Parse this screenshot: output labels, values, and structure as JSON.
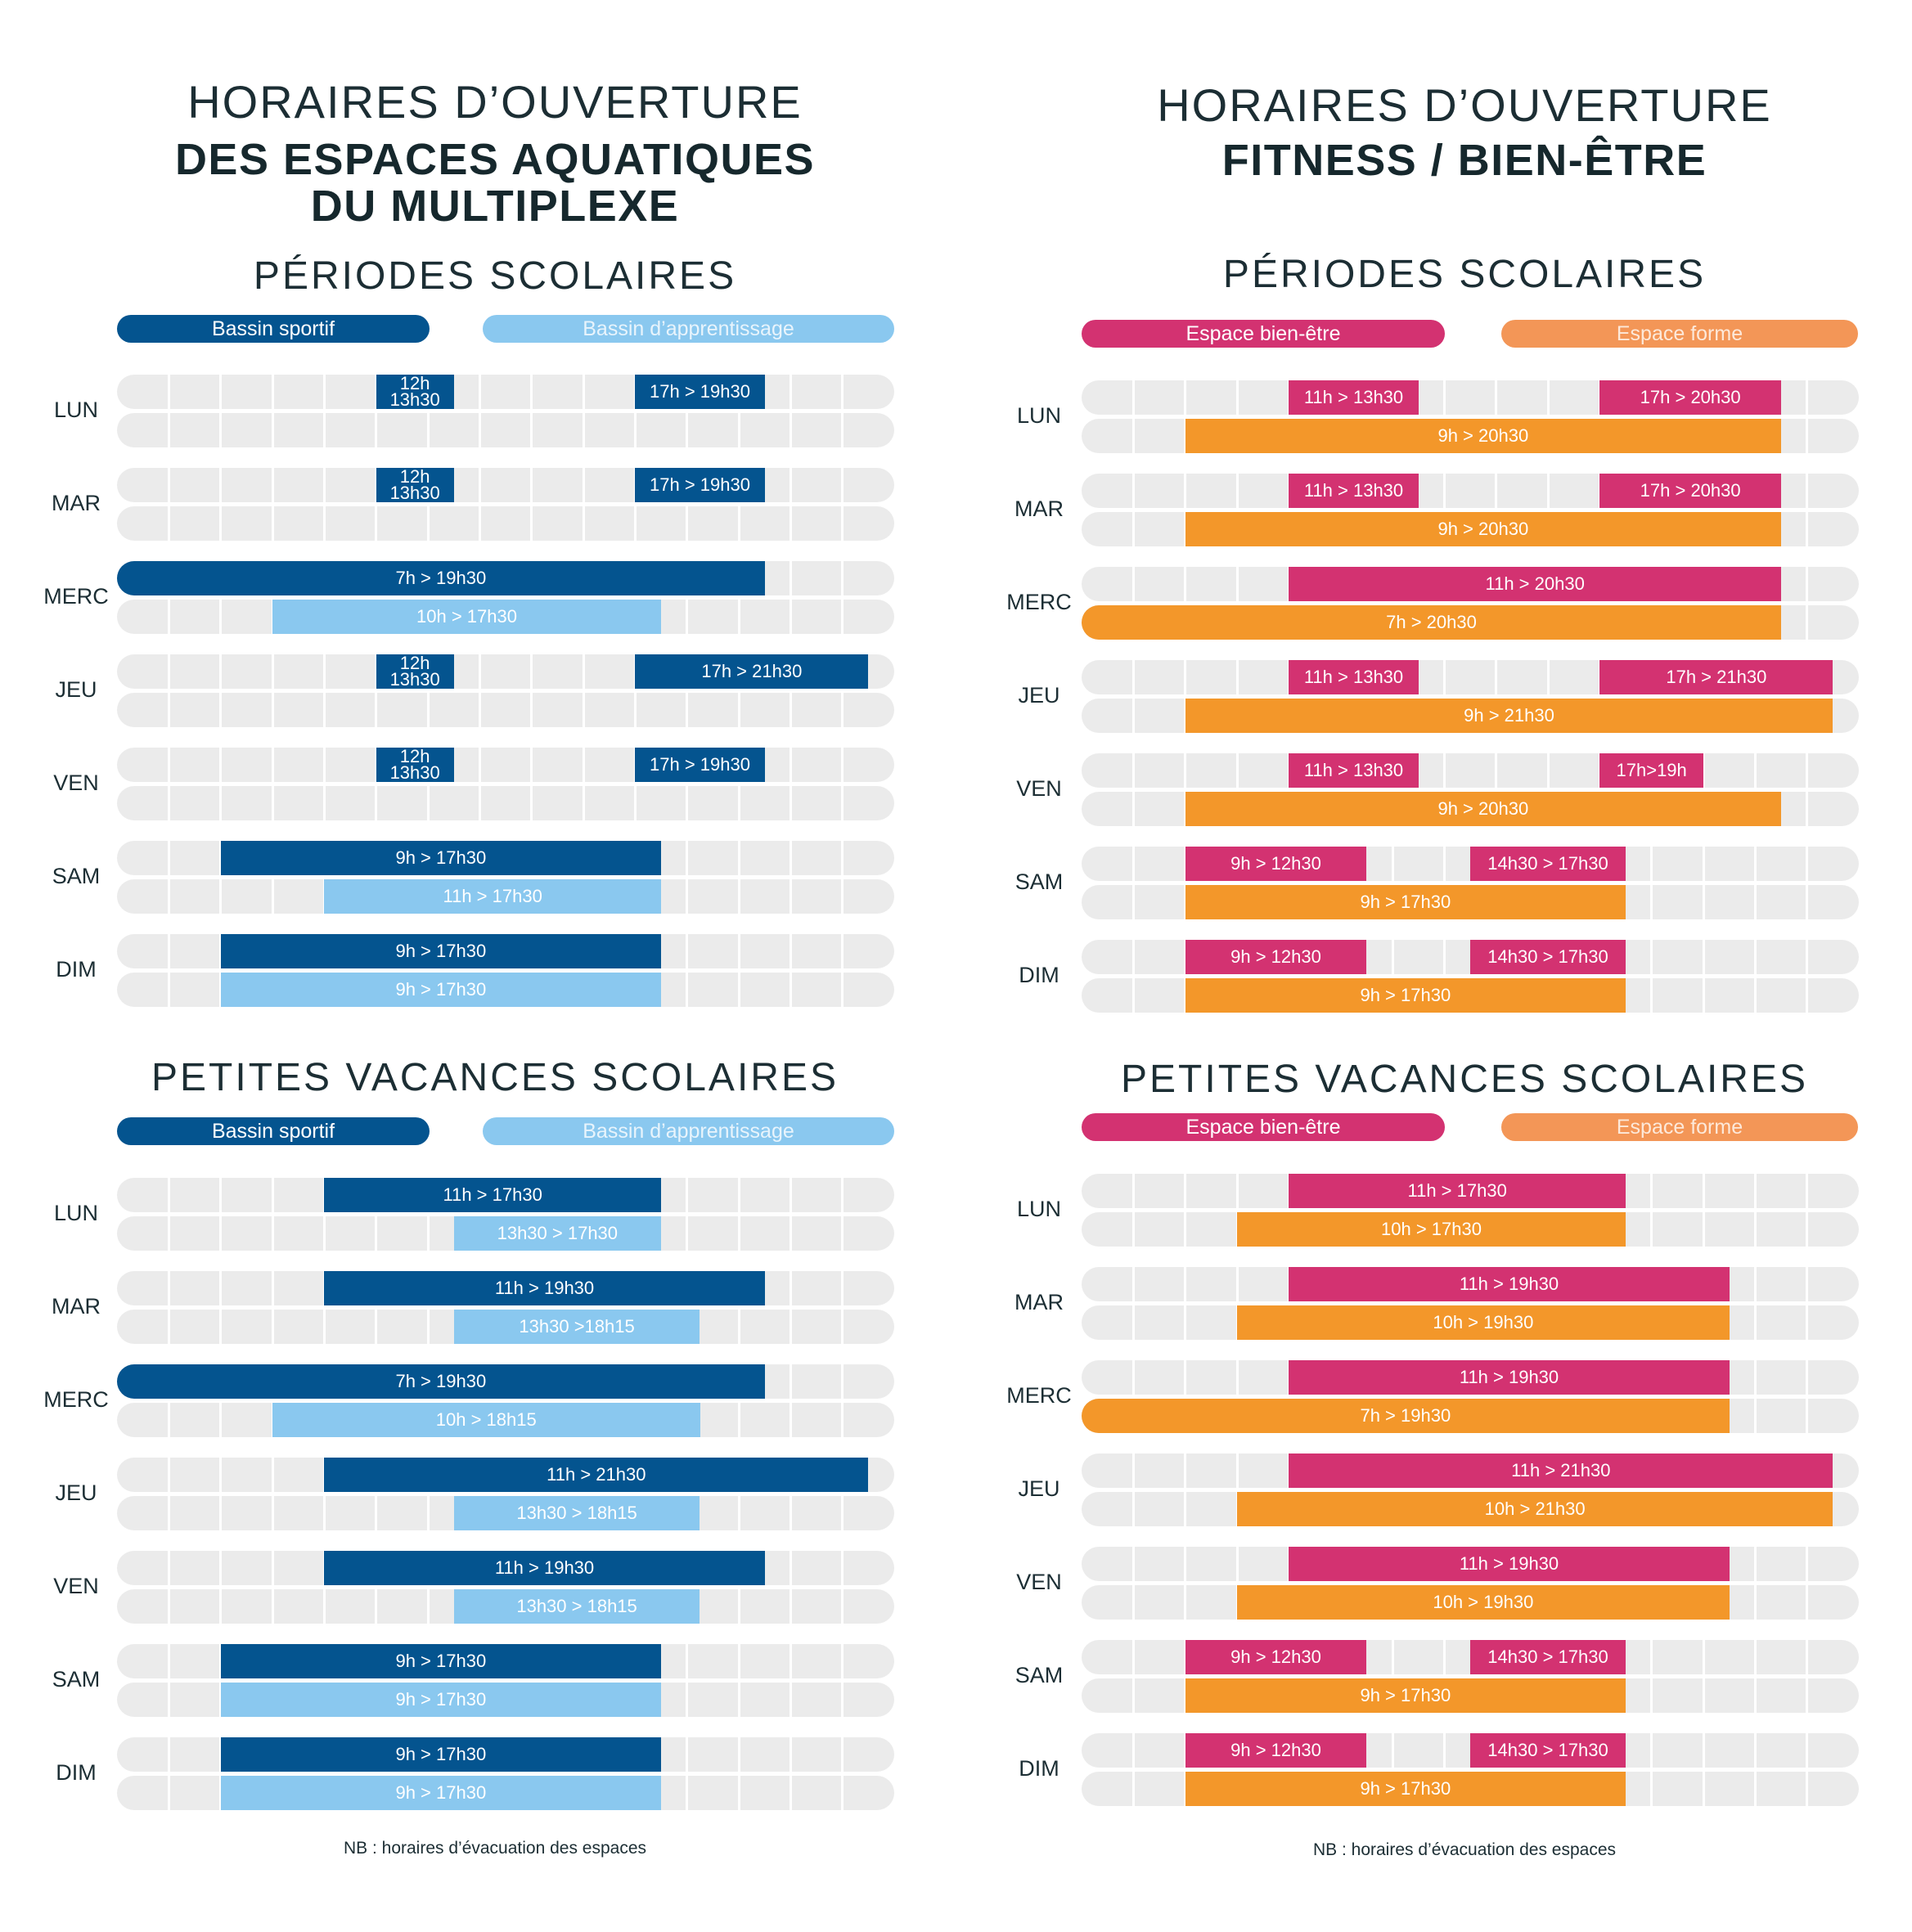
{
  "colors": {
    "bassin_sportif": "#04548f",
    "bassin_apprentissage": "#8ac8ef",
    "bien_etre": "#d33271",
    "forme_legend": "#f39657",
    "forme_bar": "#f3972a",
    "track": "#ebebeb"
  },
  "left": {
    "title_light": "HORAIRES D’OUVERTURE",
    "title_bold_1": "DES ESPACES AQUATIQUES",
    "title_bold_2": "DU MULTIPLEXE",
    "note": "NB : horaires d’évacuation des espaces"
  },
  "right": {
    "title_light": "HORAIRES D’OUVERTURE",
    "title_bold_1": "FITNESS  / BIEN-ÊTRE",
    "note": "NB : horaires d’évacuation des espaces"
  },
  "chart_data": [
    {
      "type": "bar",
      "orientation": "horizontal",
      "subtype": "timeline",
      "title": "PÉRIODES SCOLAIRES",
      "axis_hours": [
        7,
        22
      ],
      "legend": [
        "Bassin sportif",
        "Bassin d’apprentissage"
      ],
      "days": [
        {
          "day": "LUN",
          "rows": [
            [
              {
                "start": 12,
                "end": 13.5,
                "label": "12h\n13h30",
                "series": 0
              },
              {
                "start": 17,
                "end": 19.5,
                "label": "17h > 19h30",
                "series": 0
              }
            ],
            []
          ]
        },
        {
          "day": "MAR",
          "rows": [
            [
              {
                "start": 12,
                "end": 13.5,
                "label": "12h\n13h30",
                "series": 0
              },
              {
                "start": 17,
                "end": 19.5,
                "label": "17h > 19h30",
                "series": 0
              }
            ],
            []
          ]
        },
        {
          "day": "MERC",
          "rows": [
            [
              {
                "start": 7,
                "end": 19.5,
                "label": "7h > 19h30",
                "series": 0
              }
            ],
            [
              {
                "start": 10,
                "end": 17.5,
                "label": "10h > 17h30",
                "series": 1
              }
            ]
          ]
        },
        {
          "day": "JEU",
          "rows": [
            [
              {
                "start": 12,
                "end": 13.5,
                "label": "12h\n13h30",
                "series": 0
              },
              {
                "start": 17,
                "end": 21.5,
                "label": "17h > 21h30",
                "series": 0
              }
            ],
            []
          ]
        },
        {
          "day": "VEN",
          "rows": [
            [
              {
                "start": 12,
                "end": 13.5,
                "label": "12h\n13h30",
                "series": 0
              },
              {
                "start": 17,
                "end": 19.5,
                "label": "17h > 19h30",
                "series": 0
              }
            ],
            []
          ]
        },
        {
          "day": "SAM",
          "rows": [
            [
              {
                "start": 9,
                "end": 17.5,
                "label": "9h > 17h30",
                "series": 0
              }
            ],
            [
              {
                "start": 11,
                "end": 17.5,
                "label": "11h > 17h30",
                "series": 1
              }
            ]
          ]
        },
        {
          "day": "DIM",
          "rows": [
            [
              {
                "start": 9,
                "end": 17.5,
                "label": "9h > 17h30",
                "series": 0
              }
            ],
            [
              {
                "start": 9,
                "end": 17.5,
                "label": "9h > 17h30",
                "series": 1
              }
            ]
          ]
        }
      ]
    },
    {
      "type": "bar",
      "orientation": "horizontal",
      "subtype": "timeline",
      "title": "PETITES VACANCES SCOLAIRES",
      "axis_hours": [
        7,
        22
      ],
      "legend": [
        "Bassin sportif",
        "Bassin d’apprentissage"
      ],
      "days": [
        {
          "day": "LUN",
          "rows": [
            [
              {
                "start": 11,
                "end": 17.5,
                "label": "11h > 17h30",
                "series": 0
              }
            ],
            [
              {
                "start": 13.5,
                "end": 17.5,
                "label": "13h30 > 17h30",
                "series": 1
              }
            ]
          ]
        },
        {
          "day": "MAR",
          "rows": [
            [
              {
                "start": 11,
                "end": 19.5,
                "label": "11h > 19h30",
                "series": 0
              }
            ],
            [
              {
                "start": 13.5,
                "end": 18.25,
                "label": "13h30 >18h15",
                "series": 1
              }
            ]
          ]
        },
        {
          "day": "MERC",
          "rows": [
            [
              {
                "start": 7,
                "end": 19.5,
                "label": "7h > 19h30",
                "series": 0
              }
            ],
            [
              {
                "start": 10,
                "end": 18.25,
                "label": "10h > 18h15",
                "series": 1
              }
            ]
          ]
        },
        {
          "day": "JEU",
          "rows": [
            [
              {
                "start": 11,
                "end": 21.5,
                "label": "11h > 21h30",
                "series": 0
              }
            ],
            [
              {
                "start": 13.5,
                "end": 18.25,
                "label": "13h30 > 18h15",
                "series": 1
              }
            ]
          ]
        },
        {
          "day": "VEN",
          "rows": [
            [
              {
                "start": 11,
                "end": 19.5,
                "label": "11h > 19h30",
                "series": 0
              }
            ],
            [
              {
                "start": 13.5,
                "end": 18.25,
                "label": "13h30 > 18h15",
                "series": 1
              }
            ]
          ]
        },
        {
          "day": "SAM",
          "rows": [
            [
              {
                "start": 9,
                "end": 17.5,
                "label": "9h > 17h30",
                "series": 0
              }
            ],
            [
              {
                "start": 9,
                "end": 17.5,
                "label": "9h > 17h30",
                "series": 1
              }
            ]
          ]
        },
        {
          "day": "DIM",
          "rows": [
            [
              {
                "start": 9,
                "end": 17.5,
                "label": "9h > 17h30",
                "series": 0
              }
            ],
            [
              {
                "start": 9,
                "end": 17.5,
                "label": "9h > 17h30",
                "series": 1
              }
            ]
          ]
        }
      ]
    },
    {
      "type": "bar",
      "orientation": "horizontal",
      "subtype": "timeline",
      "title": "PÉRIODES SCOLAIRES",
      "axis_hours": [
        7,
        22
      ],
      "legend": [
        "Espace bien-être",
        "Espace forme"
      ],
      "days": [
        {
          "day": "LUN",
          "rows": [
            [
              {
                "start": 11,
                "end": 13.5,
                "label": "11h > 13h30",
                "series": 0
              },
              {
                "start": 17,
                "end": 20.5,
                "label": "17h > 20h30",
                "series": 0
              }
            ],
            [
              {
                "start": 9,
                "end": 20.5,
                "label": "9h > 20h30",
                "series": 1
              }
            ]
          ]
        },
        {
          "day": "MAR",
          "rows": [
            [
              {
                "start": 11,
                "end": 13.5,
                "label": "11h > 13h30",
                "series": 0
              },
              {
                "start": 17,
                "end": 20.5,
                "label": "17h > 20h30",
                "series": 0
              }
            ],
            [
              {
                "start": 9,
                "end": 20.5,
                "label": "9h > 20h30",
                "series": 1
              }
            ]
          ]
        },
        {
          "day": "MERC",
          "rows": [
            [
              {
                "start": 11,
                "end": 20.5,
                "label": "11h > 20h30",
                "series": 0
              }
            ],
            [
              {
                "start": 7,
                "end": 20.5,
                "label": "7h > 20h30",
                "series": 1
              }
            ]
          ]
        },
        {
          "day": "JEU",
          "rows": [
            [
              {
                "start": 11,
                "end": 13.5,
                "label": "11h > 13h30",
                "series": 0
              },
              {
                "start": 17,
                "end": 21.5,
                "label": "17h > 21h30",
                "series": 0
              }
            ],
            [
              {
                "start": 9,
                "end": 21.5,
                "label": "9h > 21h30",
                "series": 1
              }
            ]
          ]
        },
        {
          "day": "VEN",
          "rows": [
            [
              {
                "start": 11,
                "end": 13.5,
                "label": "11h > 13h30",
                "series": 0
              },
              {
                "start": 17,
                "end": 19,
                "label": "17h>19h",
                "series": 0
              }
            ],
            [
              {
                "start": 9,
                "end": 20.5,
                "label": "9h > 20h30",
                "series": 1
              }
            ]
          ]
        },
        {
          "day": "SAM",
          "rows": [
            [
              {
                "start": 9,
                "end": 12.5,
                "label": "9h > 12h30",
                "series": 0
              },
              {
                "start": 14.5,
                "end": 17.5,
                "label": "14h30 > 17h30",
                "series": 0
              }
            ],
            [
              {
                "start": 9,
                "end": 17.5,
                "label": "9h > 17h30",
                "series": 1
              }
            ]
          ]
        },
        {
          "day": "DIM",
          "rows": [
            [
              {
                "start": 9,
                "end": 12.5,
                "label": "9h > 12h30",
                "series": 0
              },
              {
                "start": 14.5,
                "end": 17.5,
                "label": "14h30 > 17h30",
                "series": 0
              }
            ],
            [
              {
                "start": 9,
                "end": 17.5,
                "label": "9h > 17h30",
                "series": 1
              }
            ]
          ]
        }
      ]
    },
    {
      "type": "bar",
      "orientation": "horizontal",
      "subtype": "timeline",
      "title": "PETITES VACANCES SCOLAIRES",
      "axis_hours": [
        7,
        22
      ],
      "legend": [
        "Espace bien-être",
        "Espace forme"
      ],
      "days": [
        {
          "day": "LUN",
          "rows": [
            [
              {
                "start": 11,
                "end": 17.5,
                "label": "11h > 17h30",
                "series": 0
              }
            ],
            [
              {
                "start": 10,
                "end": 17.5,
                "label": "10h > 17h30",
                "series": 1
              }
            ]
          ]
        },
        {
          "day": "MAR",
          "rows": [
            [
              {
                "start": 11,
                "end": 19.5,
                "label": "11h > 19h30",
                "series": 0
              }
            ],
            [
              {
                "start": 10,
                "end": 19.5,
                "label": "10h > 19h30",
                "series": 1
              }
            ]
          ]
        },
        {
          "day": "MERC",
          "rows": [
            [
              {
                "start": 11,
                "end": 19.5,
                "label": "11h > 19h30",
                "series": 0
              }
            ],
            [
              {
                "start": 7,
                "end": 19.5,
                "label": "7h > 19h30",
                "series": 1
              }
            ]
          ]
        },
        {
          "day": "JEU",
          "rows": [
            [
              {
                "start": 11,
                "end": 21.5,
                "label": "11h > 21h30",
                "series": 0
              }
            ],
            [
              {
                "start": 10,
                "end": 21.5,
                "label": "10h > 21h30",
                "series": 1
              }
            ]
          ]
        },
        {
          "day": "VEN",
          "rows": [
            [
              {
                "start": 11,
                "end": 19.5,
                "label": "11h > 19h30",
                "series": 0
              }
            ],
            [
              {
                "start": 10,
                "end": 19.5,
                "label": "10h > 19h30",
                "series": 1
              }
            ]
          ]
        },
        {
          "day": "SAM",
          "rows": [
            [
              {
                "start": 9,
                "end": 12.5,
                "label": "9h > 12h30",
                "series": 0
              },
              {
                "start": 14.5,
                "end": 17.5,
                "label": "14h30 > 17h30",
                "series": 0
              }
            ],
            [
              {
                "start": 9,
                "end": 17.5,
                "label": "9h > 17h30",
                "series": 1
              }
            ]
          ]
        },
        {
          "day": "DIM",
          "rows": [
            [
              {
                "start": 9,
                "end": 12.5,
                "label": "9h > 12h30",
                "series": 0
              },
              {
                "start": 14.5,
                "end": 17.5,
                "label": "14h30 > 17h30",
                "series": 0
              }
            ],
            [
              {
                "start": 9,
                "end": 17.5,
                "label": "9h > 17h30",
                "series": 1
              }
            ]
          ]
        }
      ]
    }
  ]
}
